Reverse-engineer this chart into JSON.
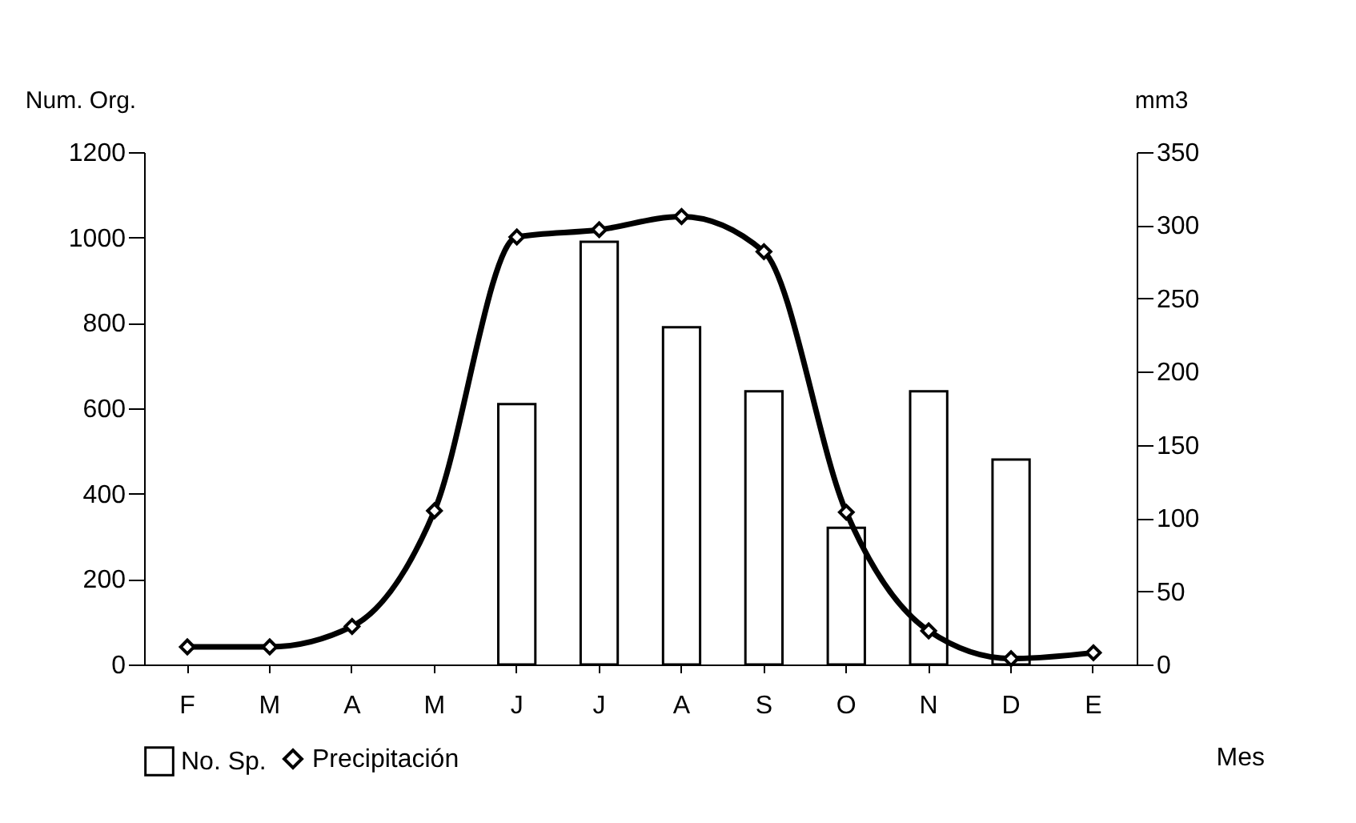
{
  "chart_data": {
    "type": "bar",
    "categories": [
      "F",
      "M",
      "A",
      "M",
      "J",
      "J",
      "A",
      "S",
      "O",
      "N",
      "D",
      "E"
    ],
    "xlabel": "Mes",
    "ylabel": "Num. Org.",
    "y2label": "mm3",
    "series": [
      {
        "name": "No. Sp.",
        "color": "#ffffff",
        "values": [
          null,
          null,
          null,
          null,
          610,
          990,
          790,
          640,
          320,
          640,
          480,
          null
        ]
      },
      {
        "name": "Precipitación",
        "type": "line",
        "axis": "y2",
        "color": "#000000",
        "marker": "diamond",
        "values": [
          12,
          12,
          26,
          105,
          292,
          297,
          306,
          282,
          104,
          23,
          4,
          8
        ]
      }
    ],
    "ylim": [
      0,
      1200
    ],
    "yticks": [
      0,
      200,
      400,
      600,
      800,
      1000,
      1200
    ],
    "y2lim": [
      0,
      350
    ],
    "y2ticks": [
      0,
      50,
      100,
      150,
      200,
      250,
      300,
      350
    ],
    "grid": false,
    "legend": "bottom"
  }
}
